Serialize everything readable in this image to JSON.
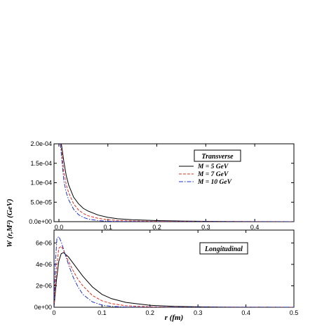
{
  "chart_data": [
    {
      "type": "line",
      "panel_label": "Transverse",
      "xlim": [
        -0.01,
        0.48
      ],
      "ylim": [
        0,
        0.0002
      ],
      "x_ticks": [
        0.0,
        0.1,
        0.2,
        0.3,
        0.4
      ],
      "x_tick_labels": [
        "0.0",
        "0.1",
        "0.2",
        "0.3",
        "0.4"
      ],
      "y_ticks": [
        0,
        5e-05,
        0.0001,
        0.00015,
        0.0002
      ],
      "y_tick_labels": [
        "0.0e+00",
        "5.0e-05",
        "1.0e-04",
        "1.5e-04",
        "2.0e-04"
      ],
      "legend_position": "top-right",
      "series": [
        {
          "name": "M = 5 GeV",
          "color": "#000000",
          "dash": "solid",
          "x": [
            0.005,
            0.01,
            0.015,
            0.02,
            0.03,
            0.04,
            0.05,
            0.06,
            0.08,
            0.1,
            0.12,
            0.15,
            0.2,
            0.25,
            0.3,
            0.35,
            0.4,
            0.48
          ],
          "y": [
            0.0002,
            0.000155,
            0.000118,
            9.4e-05,
            6.3e-05,
            4.6e-05,
            3.4e-05,
            2.7e-05,
            1.7e-05,
            1.1e-05,
            7.5e-06,
            5e-06,
            2.8e-06,
            1.6e-06,
            9e-07,
            5e-07,
            3e-07,
            1e-07
          ]
        },
        {
          "name": "M = 7 GeV",
          "color": "#e03020",
          "dash": "dashed",
          "x": [
            0.004,
            0.01,
            0.015,
            0.02,
            0.03,
            0.04,
            0.05,
            0.06,
            0.08,
            0.1,
            0.12,
            0.15,
            0.2,
            0.25,
            0.3,
            0.4,
            0.48
          ],
          "y": [
            0.0002,
            0.000128,
            9.5e-05,
            7.4e-05,
            4.6e-05,
            3e-05,
            2.1e-05,
            1.5e-05,
            8.5e-06,
            5e-06,
            3.2e-06,
            1.8e-06,
            8e-07,
            4e-07,
            2e-07,
            1e-07,
            0.0
          ],
          "__note": ""
        },
        {
          "name": "M = 10 GeV",
          "color": "#2030d0",
          "dash": "dashdot",
          "x": [
            0.003,
            0.01,
            0.015,
            0.02,
            0.03,
            0.04,
            0.05,
            0.06,
            0.08,
            0.1,
            0.12,
            0.15,
            0.2,
            0.3,
            0.48
          ],
          "y": [
            0.0002,
            0.000105,
            7.5e-05,
            5.6e-05,
            3.2e-05,
            1.8e-05,
            1.1e-05,
            6.5e-06,
            2.8e-06,
            1.2e-06,
            6e-07,
            2e-07,
            0.0,
            0.0,
            0.0
          ]
        }
      ]
    },
    {
      "type": "line",
      "panel_label": "Longitudinal",
      "xlim": [
        0,
        0.5
      ],
      "ylim": [
        0,
        7.2e-06
      ],
      "x_ticks": [
        0,
        0.1,
        0.2,
        0.3,
        0.4,
        0.5
      ],
      "x_tick_labels": [
        "0",
        "0.1",
        "0.2",
        "0.3",
        "0.4",
        "0.5"
      ],
      "y_ticks": [
        0,
        2e-06,
        4e-06,
        6e-06
      ],
      "y_tick_labels": [
        "0e+00",
        "2e-06",
        "4e-06",
        "6e-06"
      ],
      "xlabel": "r (fm)",
      "series": [
        {
          "name": "M = 5 GeV",
          "color": "#000000",
          "dash": "solid",
          "x": [
            0,
            0.005,
            0.01,
            0.015,
            0.02,
            0.03,
            0.04,
            0.05,
            0.06,
            0.08,
            0.1,
            0.12,
            0.15,
            0.2,
            0.25,
            0.3,
            0.35,
            0.4,
            0.5
          ],
          "y": [
            0,
            2.5e-06,
            4.3e-06,
            5e-06,
            5.1e-06,
            4.7e-06,
            4.1e-06,
            3.5e-06,
            2.9e-06,
            1.9e-06,
            1.2e-06,
            8e-07,
            4.5e-07,
            1.8e-07,
            8e-08,
            4e-08,
            2e-08,
            1e-08,
            0
          ]
        },
        {
          "name": "M = 7 GeV",
          "color": "#e03020",
          "dash": "dashed",
          "x": [
            0,
            0.005,
            0.01,
            0.015,
            0.02,
            0.03,
            0.04,
            0.05,
            0.06,
            0.08,
            0.1,
            0.12,
            0.15,
            0.2,
            0.25,
            0.3,
            0.4,
            0.5
          ],
          "y": [
            0,
            3.5e-06,
            5.5e-06,
            5.7e-06,
            5.3e-06,
            4.3e-06,
            3.4e-06,
            2.6e-06,
            2e-06,
            1.1e-06,
            6e-07,
            3.4e-07,
            1.4e-07,
            4e-08,
            1e-08,
            0,
            0,
            0
          ]
        },
        {
          "name": "M = 10 GeV",
          "color": "#2030d0",
          "dash": "dashdot",
          "x": [
            0,
            0.003,
            0.006,
            0.01,
            0.015,
            0.02,
            0.03,
            0.04,
            0.05,
            0.06,
            0.08,
            0.1,
            0.12,
            0.15,
            0.2,
            0.3,
            0.5
          ],
          "y": [
            0,
            4.2e-06,
            6.4e-06,
            6.6e-06,
            6.1e-06,
            5.4e-06,
            4e-06,
            2.8e-06,
            1.9e-06,
            1.2e-06,
            5e-07,
            2e-07,
            8e-08,
            2e-08,
            0,
            0,
            0
          ]
        }
      ]
    }
  ],
  "shared_ylabel": "W (r,M²) (GeV)",
  "legend": {
    "entries": [
      "M = 5 GeV",
      "M = 7 GeV",
      "M = 10 GeV"
    ]
  }
}
